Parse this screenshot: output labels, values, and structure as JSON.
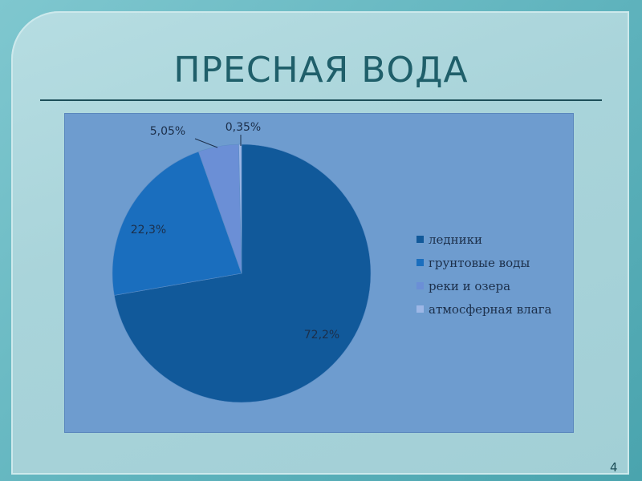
{
  "slide": {
    "title": "ПРЕСНАЯ ВОДА",
    "page_number": "4"
  },
  "colors": {
    "background": "#a9d4da",
    "plot_area": "#6e9ccf",
    "title": "#1f5f6a"
  },
  "chart_data": {
    "type": "pie",
    "title": "",
    "legend_position": "right",
    "slices": [
      {
        "label": "ледники",
        "value": 72.2,
        "display": "72,2%",
        "color": "#11599a"
      },
      {
        "label": "грунтовые воды",
        "value": 22.3,
        "display": "22,3%",
        "color": "#1a6ebe"
      },
      {
        "label": "реки и озера",
        "value": 5.05,
        "display": "5,05%",
        "color": "#6b8fd6"
      },
      {
        "label": "атмосферная влага",
        "value": 0.35,
        "display": "0,35%",
        "color": "#9db7e6"
      }
    ]
  }
}
